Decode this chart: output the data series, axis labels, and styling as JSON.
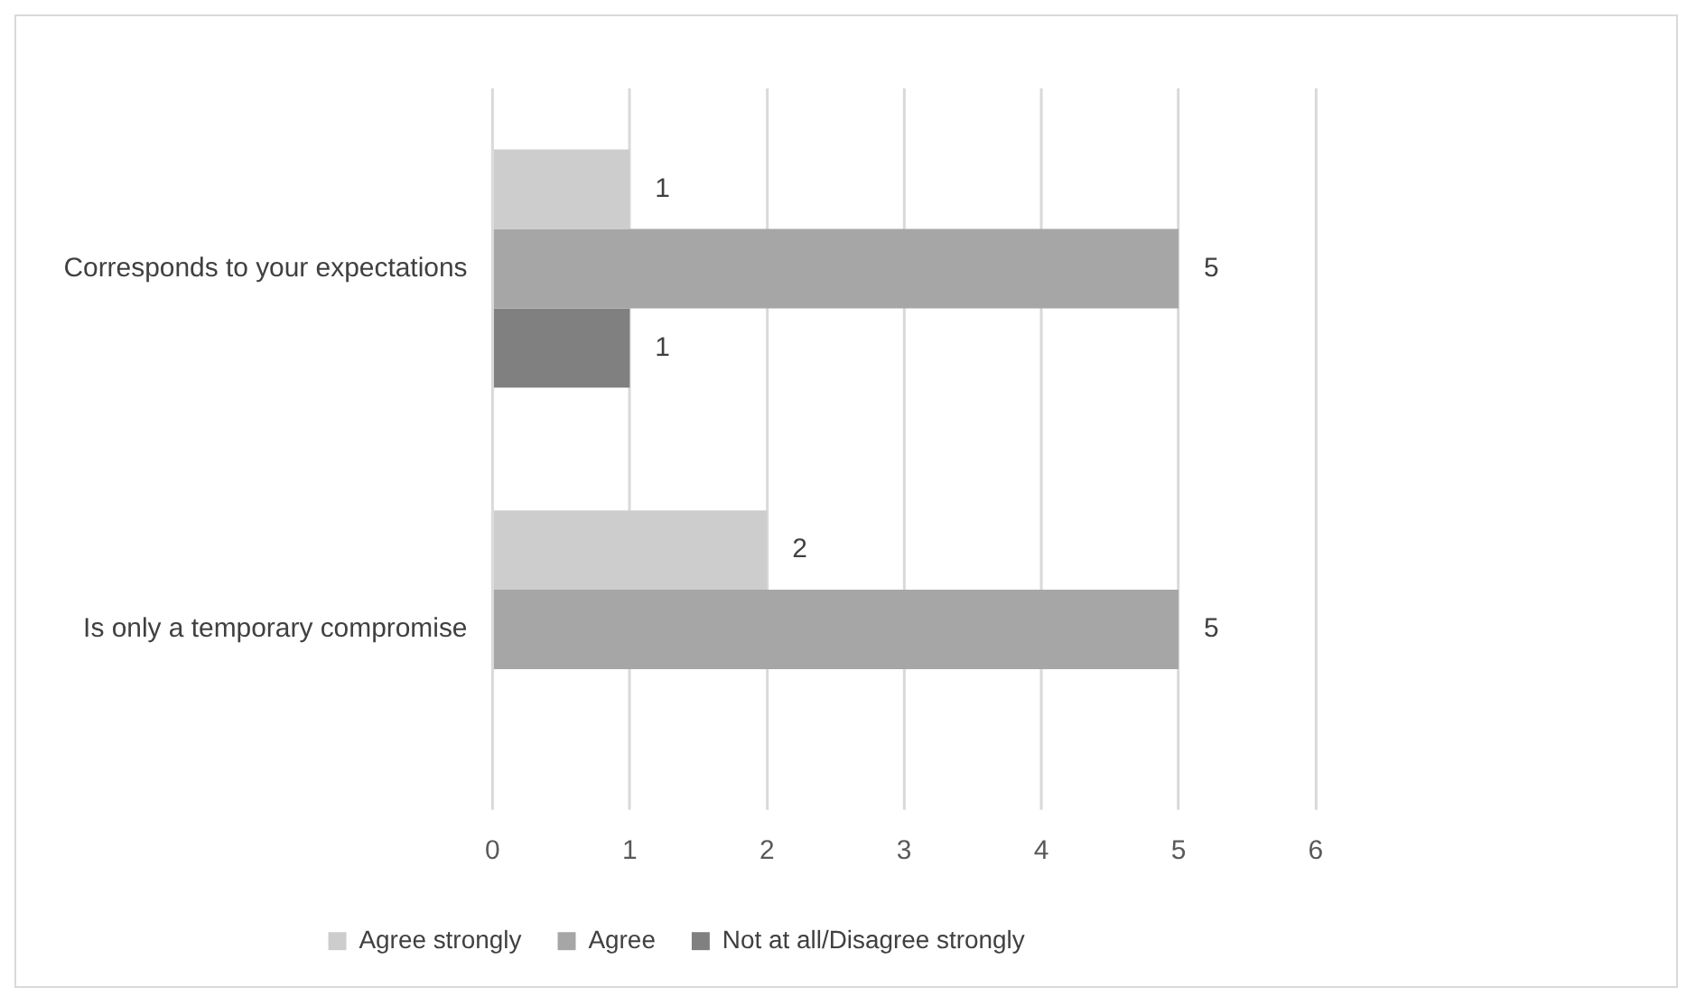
{
  "chart_data": {
    "type": "bar",
    "orientation": "horizontal",
    "categories": [
      "Corresponds to your expectations",
      "Is only a temporary compromise"
    ],
    "series": [
      {
        "name": "Agree strongly",
        "color": "#cdcdcd",
        "values": [
          1,
          2
        ]
      },
      {
        "name": "Agree",
        "color": "#a6a6a6",
        "values": [
          5,
          5
        ]
      },
      {
        "name": "Not at all/Disagree strongly",
        "color": "#808080",
        "values": [
          1,
          null
        ]
      }
    ],
    "xlim": [
      0,
      6
    ],
    "xticks": [
      0,
      1,
      2,
      3,
      4,
      5,
      6
    ],
    "grid": "x",
    "legend": "bottom",
    "data_labels": true
  }
}
